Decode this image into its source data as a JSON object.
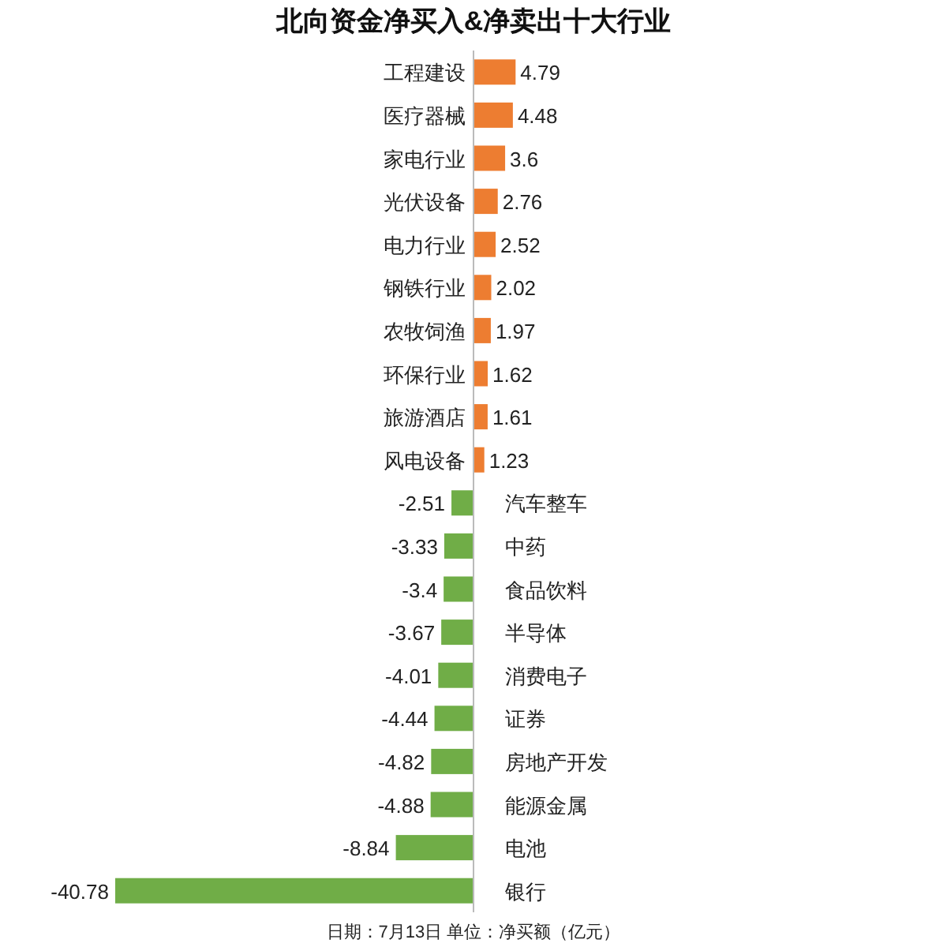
{
  "chart_data": {
    "type": "bar",
    "orientation": "horizontal",
    "title": "北向资金净买入&净卖出十大行业",
    "categories": [
      "工程建设",
      "医疗器械",
      "家电行业",
      "光伏设备",
      "电力行业",
      "钢铁行业",
      "农牧饲渔",
      "环保行业",
      "旅游酒店",
      "风电设备",
      "汽车整车",
      "中药",
      "食品饮料",
      "半导体",
      "消费电子",
      "证券",
      "房地产开发",
      "能源金属",
      "电池",
      "银行"
    ],
    "values": [
      4.79,
      4.48,
      3.6,
      2.76,
      2.52,
      2.02,
      1.97,
      1.62,
      1.61,
      1.23,
      -2.51,
      -3.33,
      -3.4,
      -3.67,
      -4.01,
      -4.44,
      -4.82,
      -4.88,
      -8.84,
      -40.78
    ],
    "colors": [
      "#ed7d31",
      "#ed7d31",
      "#ed7d31",
      "#ed7d31",
      "#ed7d31",
      "#ed7d31",
      "#ed7d31",
      "#ed7d31",
      "#ed7d31",
      "#ed7d31",
      "#70ad47",
      "#70ad47",
      "#70ad47",
      "#70ad47",
      "#70ad47",
      "#70ad47",
      "#70ad47",
      "#70ad47",
      "#70ad47",
      "#70ad47"
    ],
    "data_labels": true,
    "annotations": [
      "日期：7月13日 单位：净买额（亿元）"
    ]
  }
}
